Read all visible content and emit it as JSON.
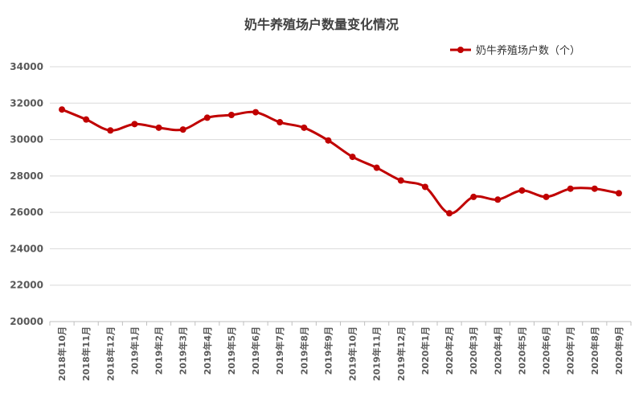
{
  "chart_data": {
    "type": "line",
    "title": "奶牛养殖场户数量变化情况",
    "legend_position": "top-right",
    "grid": true,
    "ylim": [
      20000,
      34000
    ],
    "yticks": [
      20000,
      22000,
      24000,
      26000,
      28000,
      30000,
      32000,
      34000
    ],
    "categories": [
      "2018年10月",
      "2018年11月",
      "2018年12月",
      "2019年1月",
      "2019年2月",
      "2019年3月",
      "2019年4月",
      "2019年5月",
      "2019年6月",
      "2019年7月",
      "2019年8月",
      "2019年9月",
      "2019年10月",
      "2019年11月",
      "2019年12月",
      "2020年1月",
      "2020年2月",
      "2020年3月",
      "2020年4月",
      "2020年5月",
      "2020年6月",
      "2020年7月",
      "2020年8月",
      "2020年9月"
    ],
    "series": [
      {
        "name": "奶牛养殖场户数（个）",
        "color": "#c00000",
        "values": [
          31650,
          31100,
          30500,
          30850,
          30650,
          30550,
          31200,
          31350,
          31500,
          30950,
          30650,
          29950,
          29050,
          28450,
          27750,
          27400,
          25950,
          26850,
          26700,
          27200,
          26850,
          27300,
          27300,
          27050
        ]
      }
    ]
  }
}
